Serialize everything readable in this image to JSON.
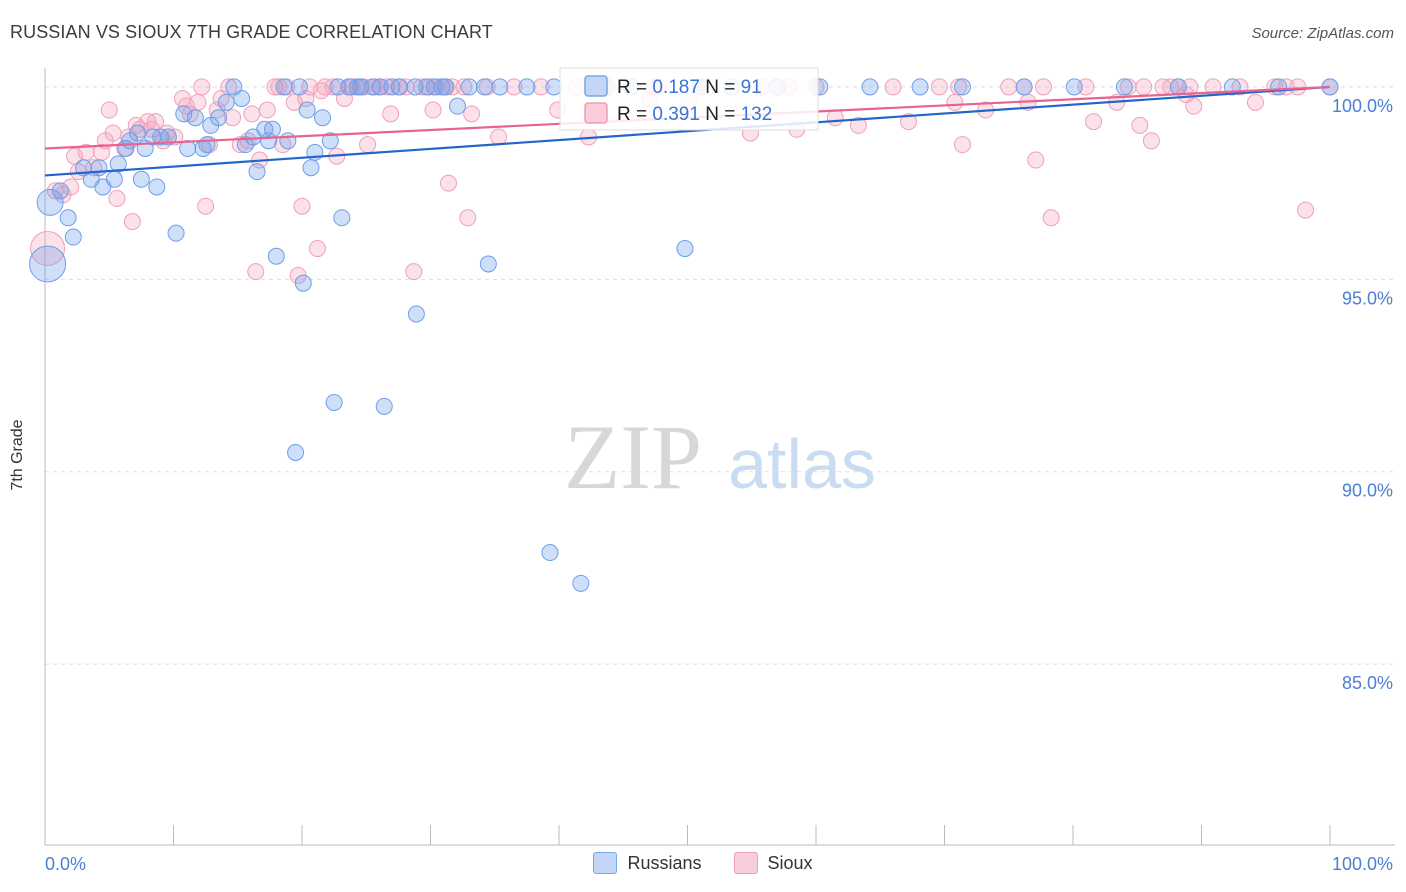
{
  "title": "RUSSIAN VS SIOUX 7TH GRADE CORRELATION CHART",
  "source": "Source: ZipAtlas.com",
  "watermark": {
    "zip": "ZIP",
    "atlas": "atlas"
  },
  "chart_data": {
    "type": "scatter",
    "title": "RUSSIAN VS SIOUX 7TH GRADE CORRELATION CHART",
    "xlabel": "",
    "ylabel": "7th Grade",
    "xlim": [
      0,
      100
    ],
    "ylim": [
      80.3,
      100.7
    ],
    "x_tick_labels": [
      "0.0%",
      "100.0%"
    ],
    "y_ticks": [
      85,
      90,
      95,
      100
    ],
    "y_tick_labels": [
      "85.0%",
      "90.0%",
      "95.0%",
      "100.0%"
    ],
    "grid": true,
    "legend_position": "bottom-center",
    "series": [
      {
        "name": "Russians",
        "color": "#6d9eeb",
        "line_color": "#2266cc",
        "R": "0.187",
        "N": "91",
        "trend": [
          [
            0,
            97.7
          ],
          [
            100,
            100.0
          ]
        ],
        "points": [
          [
            0.2,
            95.4
          ],
          [
            0.4,
            97.0
          ],
          [
            1.2,
            97.3
          ],
          [
            1.8,
            96.6
          ],
          [
            2.2,
            96.1
          ],
          [
            3.0,
            97.9
          ],
          [
            3.6,
            97.6
          ],
          [
            4.2,
            97.9
          ],
          [
            4.5,
            97.4
          ],
          [
            5.4,
            97.6
          ],
          [
            5.7,
            98.0
          ],
          [
            6.3,
            98.4
          ],
          [
            6.6,
            98.6
          ],
          [
            7.2,
            98.8
          ],
          [
            7.5,
            97.6
          ],
          [
            7.8,
            98.4
          ],
          [
            8.4,
            98.7
          ],
          [
            8.7,
            97.4
          ],
          [
            9.0,
            98.7
          ],
          [
            9.6,
            98.7
          ],
          [
            10.2,
            96.2
          ],
          [
            10.8,
            99.3
          ],
          [
            11.1,
            98.4
          ],
          [
            11.7,
            99.2
          ],
          [
            12.3,
            98.4
          ],
          [
            12.6,
            98.5
          ],
          [
            12.9,
            99.0
          ],
          [
            13.5,
            99.2
          ],
          [
            14.1,
            99.6
          ],
          [
            14.7,
            100.0
          ],
          [
            15.3,
            99.7
          ],
          [
            15.6,
            98.5
          ],
          [
            16.2,
            98.7
          ],
          [
            16.5,
            97.8
          ],
          [
            17.1,
            98.9
          ],
          [
            17.4,
            98.6
          ],
          [
            17.7,
            98.9
          ],
          [
            18.0,
            95.6
          ],
          [
            18.6,
            100.0
          ],
          [
            18.9,
            98.6
          ],
          [
            19.5,
            90.5
          ],
          [
            19.8,
            100.0
          ],
          [
            20.1,
            94.9
          ],
          [
            20.4,
            99.4
          ],
          [
            20.7,
            97.9
          ],
          [
            21.0,
            98.3
          ],
          [
            21.6,
            99.2
          ],
          [
            22.2,
            98.6
          ],
          [
            22.5,
            91.8
          ],
          [
            22.8,
            100.0
          ],
          [
            23.1,
            96.6
          ],
          [
            23.7,
            100.0
          ],
          [
            24.3,
            100.0
          ],
          [
            24.6,
            100.0
          ],
          [
            25.5,
            100.0
          ],
          [
            26.1,
            100.0
          ],
          [
            26.4,
            91.7
          ],
          [
            27.0,
            100.0
          ],
          [
            27.6,
            100.0
          ],
          [
            28.8,
            100.0
          ],
          [
            28.9,
            94.1
          ],
          [
            29.7,
            100.0
          ],
          [
            30.3,
            100.0
          ],
          [
            30.9,
            100.0
          ],
          [
            31.2,
            100.0
          ],
          [
            32.1,
            99.5
          ],
          [
            33.0,
            100.0
          ],
          [
            34.2,
            100.0
          ],
          [
            34.5,
            95.4
          ],
          [
            35.4,
            100.0
          ],
          [
            37.5,
            100.0
          ],
          [
            39.3,
            87.9
          ],
          [
            39.6,
            100.0
          ],
          [
            41.7,
            87.1
          ],
          [
            43.5,
            100.0
          ],
          [
            45.6,
            100.0
          ],
          [
            49.8,
            95.8
          ],
          [
            51.0,
            100.0
          ],
          [
            53.4,
            100.0
          ],
          [
            57.0,
            100.0
          ],
          [
            60.3,
            100.0
          ],
          [
            64.2,
            100.0
          ],
          [
            68.1,
            100.0
          ],
          [
            71.4,
            100.0
          ],
          [
            76.2,
            100.0
          ],
          [
            80.1,
            100.0
          ],
          [
            84.0,
            100.0
          ],
          [
            88.2,
            100.0
          ],
          [
            92.4,
            100.0
          ],
          [
            96.0,
            100.0
          ],
          [
            100.0,
            100.0
          ]
        ]
      },
      {
        "name": "Sioux",
        "color": "#f4a3bb",
        "line_color": "#e8638e",
        "R": "0.391",
        "N": "132",
        "trend": [
          [
            0,
            98.4
          ],
          [
            100,
            100.0
          ]
        ],
        "points": [
          [
            0.2,
            95.8
          ],
          [
            0.8,
            97.3
          ],
          [
            1.4,
            97.2
          ],
          [
            2.0,
            97.4
          ],
          [
            2.3,
            98.2
          ],
          [
            2.6,
            97.8
          ],
          [
            3.2,
            98.3
          ],
          [
            3.8,
            97.9
          ],
          [
            4.4,
            98.3
          ],
          [
            4.7,
            98.6
          ],
          [
            5.0,
            99.4
          ],
          [
            5.3,
            98.8
          ],
          [
            5.6,
            97.1
          ],
          [
            6.2,
            98.4
          ],
          [
            6.5,
            98.7
          ],
          [
            6.8,
            96.5
          ],
          [
            7.1,
            99.0
          ],
          [
            7.4,
            98.9
          ],
          [
            8.0,
            99.1
          ],
          [
            8.3,
            98.9
          ],
          [
            8.6,
            99.1
          ],
          [
            9.2,
            98.6
          ],
          [
            9.5,
            98.8
          ],
          [
            10.1,
            98.7
          ],
          [
            10.7,
            99.7
          ],
          [
            11.0,
            99.5
          ],
          [
            11.3,
            99.3
          ],
          [
            11.9,
            99.6
          ],
          [
            12.2,
            100.0
          ],
          [
            12.5,
            96.9
          ],
          [
            12.8,
            98.5
          ],
          [
            13.4,
            99.4
          ],
          [
            13.7,
            99.7
          ],
          [
            14.3,
            100.0
          ],
          [
            14.6,
            99.2
          ],
          [
            15.2,
            98.5
          ],
          [
            15.8,
            98.6
          ],
          [
            16.1,
            99.3
          ],
          [
            16.4,
            95.2
          ],
          [
            16.7,
            98.1
          ],
          [
            17.3,
            99.4
          ],
          [
            17.9,
            100.0
          ],
          [
            18.2,
            100.0
          ],
          [
            18.5,
            98.5
          ],
          [
            18.8,
            100.0
          ],
          [
            19.4,
            99.6
          ],
          [
            19.7,
            95.1
          ],
          [
            20.0,
            96.9
          ],
          [
            20.3,
            99.7
          ],
          [
            20.6,
            100.0
          ],
          [
            21.2,
            95.8
          ],
          [
            21.5,
            99.9
          ],
          [
            21.8,
            100.0
          ],
          [
            22.4,
            100.0
          ],
          [
            22.7,
            98.2
          ],
          [
            23.3,
            99.7
          ],
          [
            23.6,
            100.0
          ],
          [
            23.9,
            100.0
          ],
          [
            24.5,
            100.0
          ],
          [
            24.8,
            100.0
          ],
          [
            25.1,
            98.5
          ],
          [
            25.7,
            100.0
          ],
          [
            26.0,
            100.0
          ],
          [
            26.6,
            100.0
          ],
          [
            26.9,
            99.3
          ],
          [
            27.5,
            100.0
          ],
          [
            28.1,
            100.0
          ],
          [
            28.7,
            95.2
          ],
          [
            29.3,
            100.0
          ],
          [
            29.9,
            100.0
          ],
          [
            30.2,
            99.4
          ],
          [
            30.5,
            100.0
          ],
          [
            31.1,
            100.0
          ],
          [
            31.4,
            97.5
          ],
          [
            31.7,
            100.0
          ],
          [
            32.6,
            100.0
          ],
          [
            32.9,
            96.6
          ],
          [
            33.2,
            99.3
          ],
          [
            34.4,
            100.0
          ],
          [
            35.3,
            98.7
          ],
          [
            36.5,
            100.0
          ],
          [
            38.6,
            100.0
          ],
          [
            39.9,
            99.4
          ],
          [
            41.4,
            100.0
          ],
          [
            42.3,
            98.7
          ],
          [
            43.8,
            100.0
          ],
          [
            47.1,
            99.7
          ],
          [
            47.4,
            100.0
          ],
          [
            47.7,
            100.0
          ],
          [
            50.1,
            99.6
          ],
          [
            51.6,
            100.0
          ],
          [
            54.9,
            98.8
          ],
          [
            55.8,
            100.0
          ],
          [
            57.9,
            100.0
          ],
          [
            58.5,
            98.9
          ],
          [
            60.0,
            100.0
          ],
          [
            61.5,
            99.2
          ],
          [
            63.3,
            99.0
          ],
          [
            66.0,
            100.0
          ],
          [
            67.2,
            99.1
          ],
          [
            69.6,
            100.0
          ],
          [
            70.8,
            99.6
          ],
          [
            71.1,
            100.0
          ],
          [
            71.4,
            98.5
          ],
          [
            73.2,
            99.4
          ],
          [
            75.0,
            100.0
          ],
          [
            76.2,
            100.0
          ],
          [
            76.5,
            99.6
          ],
          [
            77.1,
            98.1
          ],
          [
            77.7,
            100.0
          ],
          [
            78.3,
            96.6
          ],
          [
            81.0,
            100.0
          ],
          [
            81.6,
            99.1
          ],
          [
            83.4,
            99.6
          ],
          [
            84.3,
            100.0
          ],
          [
            85.2,
            99.0
          ],
          [
            85.5,
            100.0
          ],
          [
            86.1,
            98.6
          ],
          [
            87.0,
            100.0
          ],
          [
            87.6,
            100.0
          ],
          [
            88.2,
            100.0
          ],
          [
            88.8,
            99.8
          ],
          [
            89.1,
            100.0
          ],
          [
            89.4,
            99.5
          ],
          [
            90.9,
            100.0
          ],
          [
            93.0,
            100.0
          ],
          [
            94.2,
            99.6
          ],
          [
            95.7,
            100.0
          ],
          [
            96.6,
            100.0
          ],
          [
            97.5,
            100.0
          ],
          [
            98.1,
            96.8
          ],
          [
            100.0,
            100.0
          ]
        ]
      }
    ]
  }
}
